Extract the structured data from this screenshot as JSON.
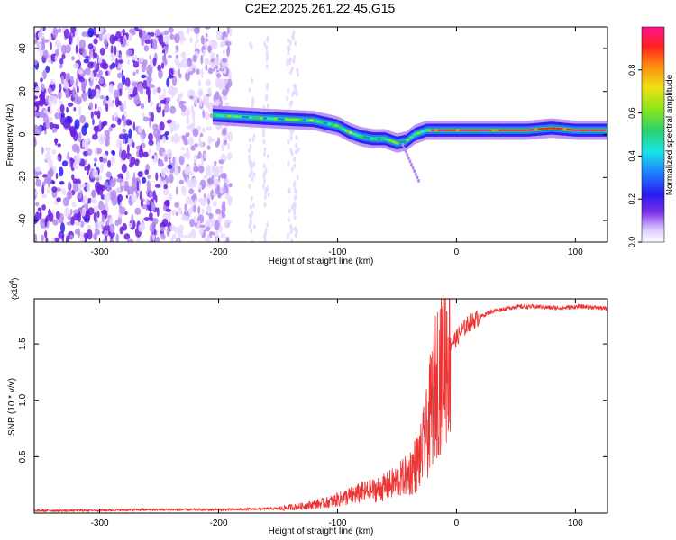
{
  "title": "C2E2.2025.261.22.45.G15",
  "colors": {
    "snr_line": "#ee3333",
    "colormap": [
      "#ffffff",
      "#e8d8ff",
      "#b58cf0",
      "#6a1ee0",
      "#2a1bf0",
      "#1e7dff",
      "#18e6e6",
      "#2cd26b",
      "#8ee619",
      "#f0e014",
      "#ff8a10",
      "#ff2020",
      "#ff1493"
    ]
  },
  "chart_data": [
    {
      "type": "heatmap",
      "xlabel": "Height of straight line (km)",
      "ylabel": "Frequency (Hz)",
      "xlim": [
        -355,
        127
      ],
      "ylim": [
        -50,
        50
      ],
      "xticks": [
        -300,
        -200,
        -100,
        0,
        100
      ],
      "yticks": [
        -40,
        -20,
        0,
        20,
        40
      ],
      "grid": false,
      "colorbar": {
        "label": "Normalized spectral amplitude",
        "range": [
          0,
          1
        ],
        "ticks": [
          "0.0",
          "0.2",
          "0.4",
          "0.6",
          "0.8"
        ]
      },
      "ridge": {
        "x": [
          -205,
          -190,
          -175,
          -160,
          -140,
          -120,
          -100,
          -90,
          -80,
          -70,
          -60,
          -50,
          -42,
          -35,
          -25,
          -15,
          0,
          30,
          60,
          80,
          100,
          127
        ],
        "y": [
          9,
          8.5,
          8,
          7.5,
          7,
          6.5,
          4,
          1,
          -1,
          -2,
          -2,
          -4,
          -3,
          0,
          2,
          2,
          2,
          2,
          2,
          3,
          2,
          2
        ]
      }
    },
    {
      "type": "line",
      "xlabel": "Height of straight line (km)",
      "ylabel": "SNR (10 * v/v)",
      "y_multiplier": "(x10^4)",
      "xlim": [
        -355,
        127
      ],
      "ylim": [
        0,
        1.9
      ],
      "xticks": [
        -300,
        -200,
        -100,
        0,
        100
      ],
      "yticks": [
        0.5,
        1.0,
        1.5
      ],
      "ytick_labels": [
        "0.5",
        "1.0",
        "1.5"
      ],
      "grid": false,
      "series": [
        {
          "x": [
            -355,
            -300,
            -250,
            -200,
            -170,
            -150,
            -130,
            -110,
            -100,
            -90,
            -80,
            -70,
            -60,
            -50,
            -40,
            -30,
            -25,
            -20,
            -15,
            -10,
            -5,
            0,
            5,
            10,
            20,
            30,
            40,
            50,
            60,
            70,
            80,
            90,
            100,
            110,
            120,
            127
          ],
          "values": [
            0.02,
            0.025,
            0.03,
            0.03,
            0.035,
            0.04,
            0.06,
            0.09,
            0.12,
            0.15,
            0.18,
            0.2,
            0.23,
            0.28,
            0.35,
            0.5,
            0.7,
            1.0,
            1.25,
            1.4,
            1.5,
            1.55,
            1.62,
            1.68,
            1.74,
            1.79,
            1.81,
            1.83,
            1.83,
            1.83,
            1.82,
            1.82,
            1.83,
            1.83,
            1.82,
            1.81
          ]
        }
      ]
    }
  ]
}
